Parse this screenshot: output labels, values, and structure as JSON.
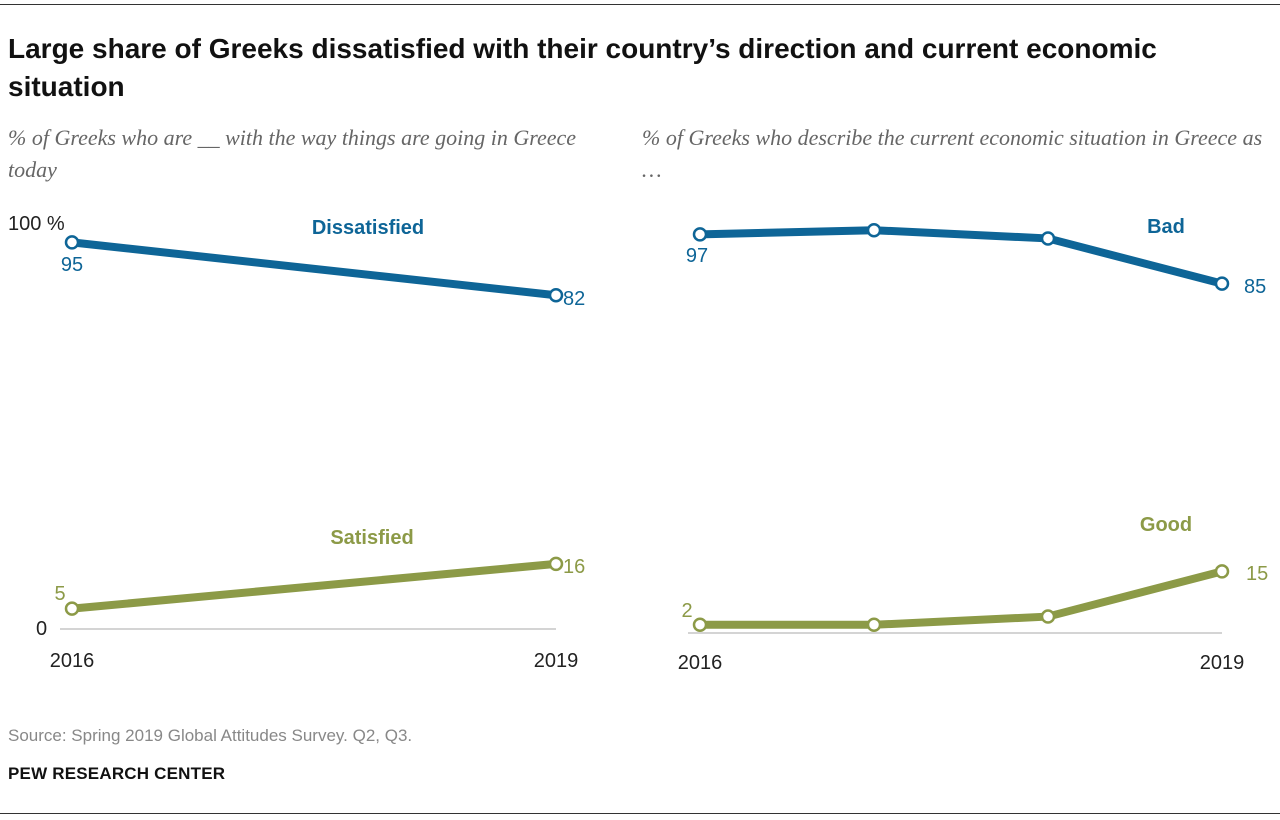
{
  "title": "Large share of Greeks dissatisfied with their country’s direction and current economic situation",
  "colors": {
    "blue": "#0e6597",
    "green": "#8c9a47",
    "axis": "#aaaaaa",
    "text": "#222222"
  },
  "chart_data": [
    {
      "type": "line",
      "subtitle": "% of Greeks who are __ with the way things are going in Greece today",
      "x": [
        "2016",
        "2019"
      ],
      "x_tick_labels": [
        "2016",
        "2019"
      ],
      "y_tick_labels": [
        "100 %",
        "0"
      ],
      "ylim": [
        0,
        100
      ],
      "series": [
        {
          "name": "Dissatisfied",
          "color": "#0e6597",
          "values": [
            95,
            82
          ],
          "labels": [
            "95",
            "82"
          ],
          "label_at": [
            0,
            1
          ]
        },
        {
          "name": "Satisfied",
          "color": "#8c9a47",
          "values": [
            5,
            16
          ],
          "labels": [
            "5",
            "16"
          ],
          "label_at": [
            0,
            1
          ]
        }
      ]
    },
    {
      "type": "line",
      "subtitle": "% of Greeks who describe the current economic situation in Greece as …",
      "x": [
        "2016",
        "2017",
        "2018",
        "2019"
      ],
      "x_tick_labels": [
        "2016",
        "2019"
      ],
      "y_tick_labels": [],
      "ylim": [
        0,
        100
      ],
      "series": [
        {
          "name": "Bad",
          "color": "#0e6597",
          "values": [
            97,
            98,
            96,
            85
          ],
          "labels": [
            "97",
            "85"
          ],
          "label_at": [
            0,
            3
          ]
        },
        {
          "name": "Good",
          "color": "#8c9a47",
          "values": [
            2,
            2,
            4,
            15
          ],
          "labels": [
            "2",
            "15"
          ],
          "label_at": [
            0,
            3
          ]
        }
      ]
    }
  ],
  "source": "Source: Spring 2019 Global Attitudes Survey. Q2, Q3.",
  "brand": "PEW RESEARCH CENTER"
}
